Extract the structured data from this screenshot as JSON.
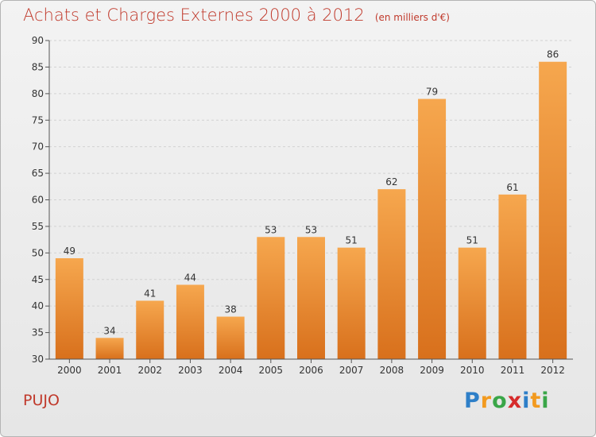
{
  "title": "Achats et Charges Externes 2000 à 2012",
  "unit": "(en milliers d'€)",
  "commune": "PUJO",
  "logo": {
    "letters": [
      "P",
      "r",
      "o",
      "x",
      "i",
      "t",
      "i"
    ],
    "colors": [
      "#2e7fc8",
      "#f29a1f",
      "#3aa648",
      "#d62b2b",
      "#2e7fc8",
      "#f29a1f",
      "#3aa648"
    ]
  },
  "colors": {
    "bar_top": "#f6a74e",
    "bar_bottom": "#d8701c",
    "title": "#c0392b"
  },
  "chart_data": {
    "type": "bar",
    "title": "Achats et Charges Externes 2000 à 2012",
    "categories": [
      "2000",
      "2001",
      "2002",
      "2003",
      "2004",
      "2005",
      "2006",
      "2007",
      "2008",
      "2009",
      "2010",
      "2011",
      "2012"
    ],
    "values": [
      49,
      34,
      41,
      44,
      38,
      53,
      53,
      51,
      62,
      79,
      51,
      61,
      86
    ],
    "ylim": [
      30,
      90
    ],
    "yticks": [
      30,
      35,
      40,
      45,
      50,
      55,
      60,
      65,
      70,
      75,
      80,
      85,
      90
    ],
    "grid": true
  }
}
